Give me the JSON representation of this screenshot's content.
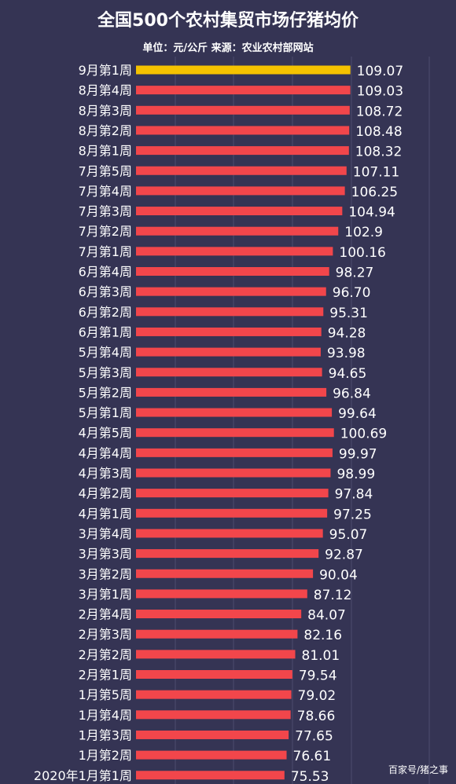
{
  "chart_data": {
    "type": "bar",
    "orientation": "horizontal",
    "title": "全国500个农村集贸市场仔猪均价",
    "subtitle": "单位：元/公斤 来源：农业农村部网站",
    "categories": [
      "9月第1周",
      "8月第4周",
      "8月第3周",
      "8月第2周",
      "8月第1周",
      "7月第5周",
      "7月第4周",
      "7月第3周",
      "7月第2周",
      "7月第1周",
      "6月第4周",
      "6月第3周",
      "6月第2周",
      "6月第1周",
      "5月第4周",
      "5月第3周",
      "5月第2周",
      "5月第1周",
      "4月第5周",
      "4月第4周",
      "4月第3周",
      "4月第2周",
      "4月第1周",
      "3月第4周",
      "3月第3周",
      "3月第2周",
      "3月第1周",
      "2月第4周",
      "2月第3周",
      "2月第2周",
      "2月第1周",
      "1月第5周",
      "1月第4周",
      "1月第3周",
      "1月第2周",
      "2020年1月第1周"
    ],
    "values": [
      109.07,
      109.03,
      108.72,
      108.48,
      108.32,
      107.11,
      106.25,
      104.94,
      102.9,
      100.16,
      98.27,
      96.7,
      95.31,
      94.28,
      93.98,
      94.65,
      96.84,
      99.64,
      100.69,
      99.97,
      98.99,
      97.84,
      97.25,
      95.07,
      92.87,
      90.04,
      87.12,
      84.07,
      82.16,
      81.01,
      79.54,
      79.02,
      78.66,
      77.65,
      76.61,
      75.53
    ],
    "value_labels": [
      "109.07",
      "109.03",
      "108.72",
      "108.48",
      "108.32",
      "107.11",
      "106.25",
      "104.94",
      "102.9",
      "100.16",
      "98.27",
      "96.70",
      "95.31",
      "94.28",
      "93.98",
      "94.65",
      "96.84",
      "99.64",
      "100.69",
      "99.97",
      "98.99",
      "97.84",
      "97.25",
      "95.07",
      "92.87",
      "90.04",
      "87.12",
      "84.07",
      "82.16",
      "81.01",
      "79.54",
      "79.02",
      "78.66",
      "77.65",
      "76.61",
      "75.53"
    ],
    "highlight_index": 0,
    "grid": true,
    "colors": {
      "background": "#353454",
      "bar": "#f2464b",
      "highlight": "#f5c200",
      "grid": "#4d4c6e",
      "text": "#ffffff"
    }
  },
  "watermark": "百家号/猪之事"
}
